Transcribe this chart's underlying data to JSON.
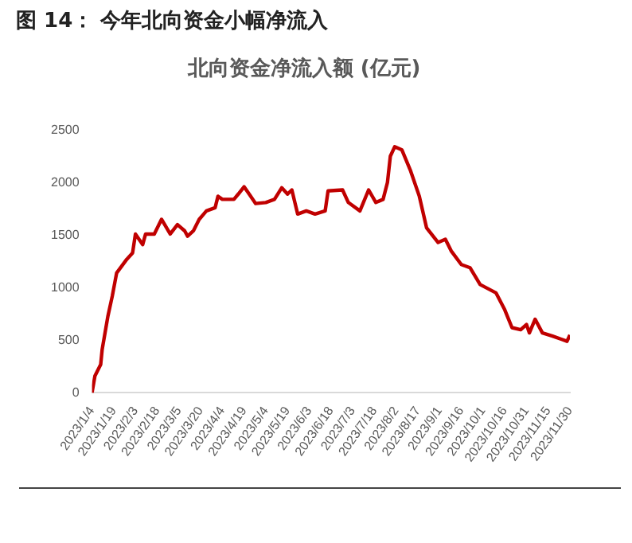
{
  "chart_data": {
    "type": "line",
    "title": "图 14： 今年北向资金小幅净流入",
    "subtitle": "北向资金净流入额 (亿元)",
    "x": [
      "2023-01-04",
      "2023-01-06",
      "2023-01-10",
      "2023-01-11",
      "2023-01-15",
      "2023-01-18",
      "2023-01-21",
      "2023-01-28",
      "2023-02-01",
      "2023-02-03",
      "2023-02-08",
      "2023-02-10",
      "2023-02-16",
      "2023-02-21",
      "2023-02-27",
      "2023-03-04",
      "2023-03-09",
      "2023-03-11",
      "2023-03-15",
      "2023-03-19",
      "2023-03-24",
      "2023-03-30",
      "2023-04-01",
      "2023-04-04",
      "2023-04-12",
      "2023-04-15",
      "2023-04-19",
      "2023-04-23",
      "2023-04-27",
      "2023-05-04",
      "2023-05-10",
      "2023-05-15",
      "2023-05-19",
      "2023-05-22",
      "2023-05-26",
      "2023-06-01",
      "2023-06-07",
      "2023-06-14",
      "2023-06-16",
      "2023-06-26",
      "2023-06-30",
      "2023-07-08",
      "2023-07-14",
      "2023-07-19",
      "2023-07-24",
      "2023-07-27",
      "2023-07-29",
      "2023-08-01",
      "2023-08-06",
      "2023-08-12",
      "2023-08-18",
      "2023-08-23",
      "2023-08-31",
      "2023-09-05",
      "2023-09-09",
      "2023-09-16",
      "2023-09-22",
      "2023-09-29",
      "2023-10-10",
      "2023-10-16",
      "2023-10-21",
      "2023-10-27",
      "2023-10-31",
      "2023-11-02",
      "2023-11-06",
      "2023-11-11",
      "2023-11-18",
      "2023-11-24",
      "2023-11-28",
      "2023-11-30"
    ],
    "series": [
      {
        "color": "#c00000",
        "values": [
          0,
          160,
          270,
          410,
          730,
          920,
          1140,
          1270,
          1330,
          1510,
          1410,
          1510,
          1510,
          1650,
          1510,
          1600,
          1540,
          1490,
          1540,
          1650,
          1730,
          1760,
          1870,
          1840,
          1840,
          1890,
          1960,
          1880,
          1800,
          1810,
          1840,
          1950,
          1890,
          1930,
          1700,
          1730,
          1700,
          1730,
          1920,
          1930,
          1810,
          1730,
          1930,
          1810,
          1840,
          2000,
          2250,
          2340,
          2310,
          2110,
          1870,
          1570,
          1430,
          1460,
          1350,
          1220,
          1190,
          1030,
          950,
          790,
          620,
          600,
          650,
          570,
          700,
          570,
          540,
          510,
          490,
          550
        ]
      }
    ],
    "ylim": [
      0,
      2500
    ],
    "yticks": [
      0,
      500,
      1000,
      1500,
      2000,
      2500
    ],
    "xlim": [
      "2023-01-04",
      "2023-11-30"
    ],
    "xticks": [
      {
        "value": "2023-01-04",
        "label": "2023/1/4"
      },
      {
        "value": "2023-01-19",
        "label": "2023/1/19"
      },
      {
        "value": "2023-02-03",
        "label": "2023/2/3"
      },
      {
        "value": "2023-02-18",
        "label": "2023/2/18"
      },
      {
        "value": "2023-03-05",
        "label": "2023/3/5"
      },
      {
        "value": "2023-03-20",
        "label": "2023/3/20"
      },
      {
        "value": "2023-04-04",
        "label": "2023/4/4"
      },
      {
        "value": "2023-04-19",
        "label": "2023/4/19"
      },
      {
        "value": "2023-05-04",
        "label": "2023/5/4"
      },
      {
        "value": "2023-05-19",
        "label": "2023/5/19"
      },
      {
        "value": "2023-06-03",
        "label": "2023/6/3"
      },
      {
        "value": "2023-06-18",
        "label": "2023/6/18"
      },
      {
        "value": "2023-07-03",
        "label": "2023/7/3"
      },
      {
        "value": "2023-07-18",
        "label": "2023/7/18"
      },
      {
        "value": "2023-08-02",
        "label": "2023/8/2"
      },
      {
        "value": "2023-08-17",
        "label": "2023/8/17"
      },
      {
        "value": "2023-09-01",
        "label": "2023/9/1"
      },
      {
        "value": "2023-09-16",
        "label": "2023/9/16"
      },
      {
        "value": "2023-10-01",
        "label": "2023/10/1"
      },
      {
        "value": "2023-10-16",
        "label": "2023/10/16"
      },
      {
        "value": "2023-10-31",
        "label": "2023/10/31"
      },
      {
        "value": "2023-11-15",
        "label": "2023/11/15"
      },
      {
        "value": "2023-11-30",
        "label": "2023/11/30"
      }
    ],
    "grid": false,
    "legend": false,
    "marker": "none",
    "line_style": "solid"
  }
}
